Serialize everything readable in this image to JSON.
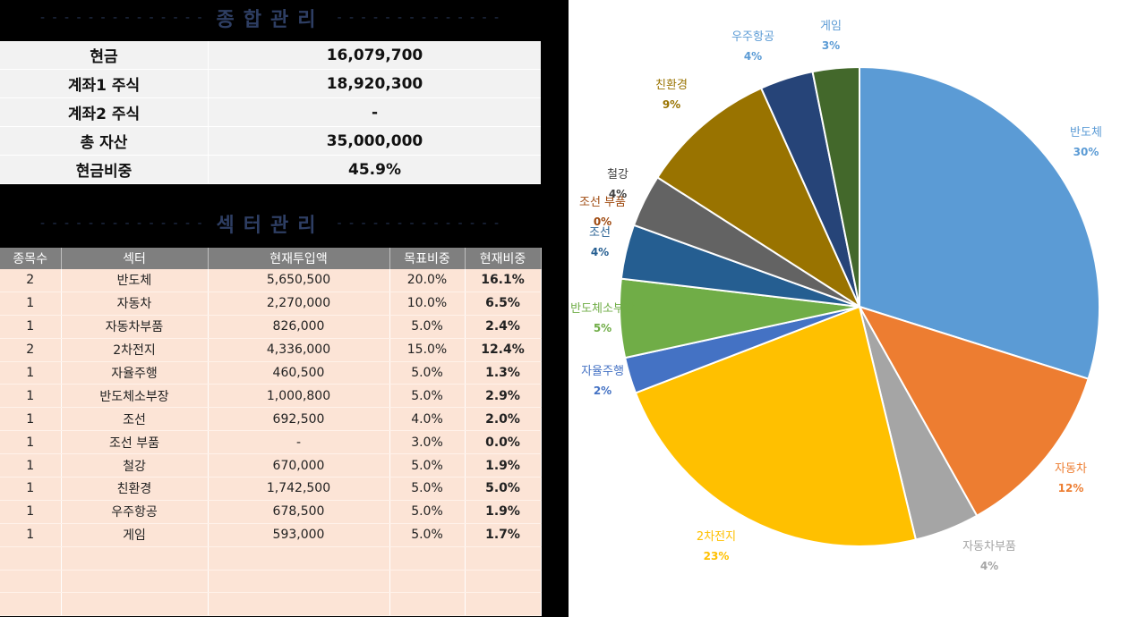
{
  "summary": {
    "title": "종합관리",
    "rows": [
      {
        "label": "현금",
        "value": "16,079,700"
      },
      {
        "label": "계좌1 주식",
        "value": "18,920,300"
      },
      {
        "label": "계좌2 주식",
        "value": "-"
      },
      {
        "label": "총 자산",
        "value": "35,000,000"
      },
      {
        "label": "현금비중",
        "value": "45.9%"
      }
    ]
  },
  "sector": {
    "title": "섹터관리",
    "headers": [
      "종목수",
      "섹터",
      "현재투입액",
      "목표비중",
      "현재비중"
    ],
    "rows": [
      [
        "2",
        "반도체",
        "5,650,500",
        "20.0%",
        "16.1%"
      ],
      [
        "1",
        "자동차",
        "2,270,000",
        "10.0%",
        "6.5%"
      ],
      [
        "1",
        "자동차부품",
        "826,000",
        "5.0%",
        "2.4%"
      ],
      [
        "2",
        "2차전지",
        "4,336,000",
        "15.0%",
        "12.4%"
      ],
      [
        "1",
        "자율주행",
        "460,500",
        "5.0%",
        "1.3%"
      ],
      [
        "1",
        "반도체소부장",
        "1,000,800",
        "5.0%",
        "2.9%"
      ],
      [
        "1",
        "조선",
        "692,500",
        "4.0%",
        "2.0%"
      ],
      [
        "1",
        "조선 부품",
        "-",
        "3.0%",
        "0.0%"
      ],
      [
        "1",
        "철강",
        "670,000",
        "5.0%",
        "1.9%"
      ],
      [
        "1",
        "친환경",
        "1,742,500",
        "5.0%",
        "5.0%"
      ],
      [
        "1",
        "우주항공",
        "678,500",
        "5.0%",
        "1.9%"
      ],
      [
        "1",
        "게임",
        "593,000",
        "5.0%",
        "1.7%"
      ]
    ],
    "empty_rows": 3
  },
  "chart_data": {
    "type": "pie",
    "categories": [
      "반도체",
      "자동차",
      "자동차부품",
      "2차전지",
      "자율주행",
      "반도체소부장",
      "조선",
      "조선 부품",
      "철강",
      "친환경",
      "우주항공",
      "게임"
    ],
    "values": [
      5650500,
      2270000,
      826000,
      4336000,
      460500,
      1000800,
      692500,
      0,
      670000,
      1742500,
      678500,
      593000
    ],
    "percent_labels": [
      "30%",
      "12%",
      "4%",
      "23%",
      "2%",
      "5%",
      "4%",
      "0%",
      "4%",
      "9%",
      "4%",
      "3%"
    ],
    "colors": [
      "#5b9bd5",
      "#ed7d31",
      "#a5a5a5",
      "#ffc000",
      "#4472c4",
      "#70ad47",
      "#255e91",
      "#9e480e",
      "#636363",
      "#997300",
      "#264478",
      "#43682b"
    ],
    "label_colors": [
      "#5b9bd5",
      "#ed7d31",
      "#a5a5a5",
      "#ffc000",
      "#4472c4",
      "#70ad47",
      "#255e91",
      "#9e480e",
      "#404040",
      "#997300",
      "#5b9bd5",
      "#5b9bd5"
    ],
    "start_angle": "12 o'clock",
    "direction": "clockwise",
    "legend": "none"
  }
}
